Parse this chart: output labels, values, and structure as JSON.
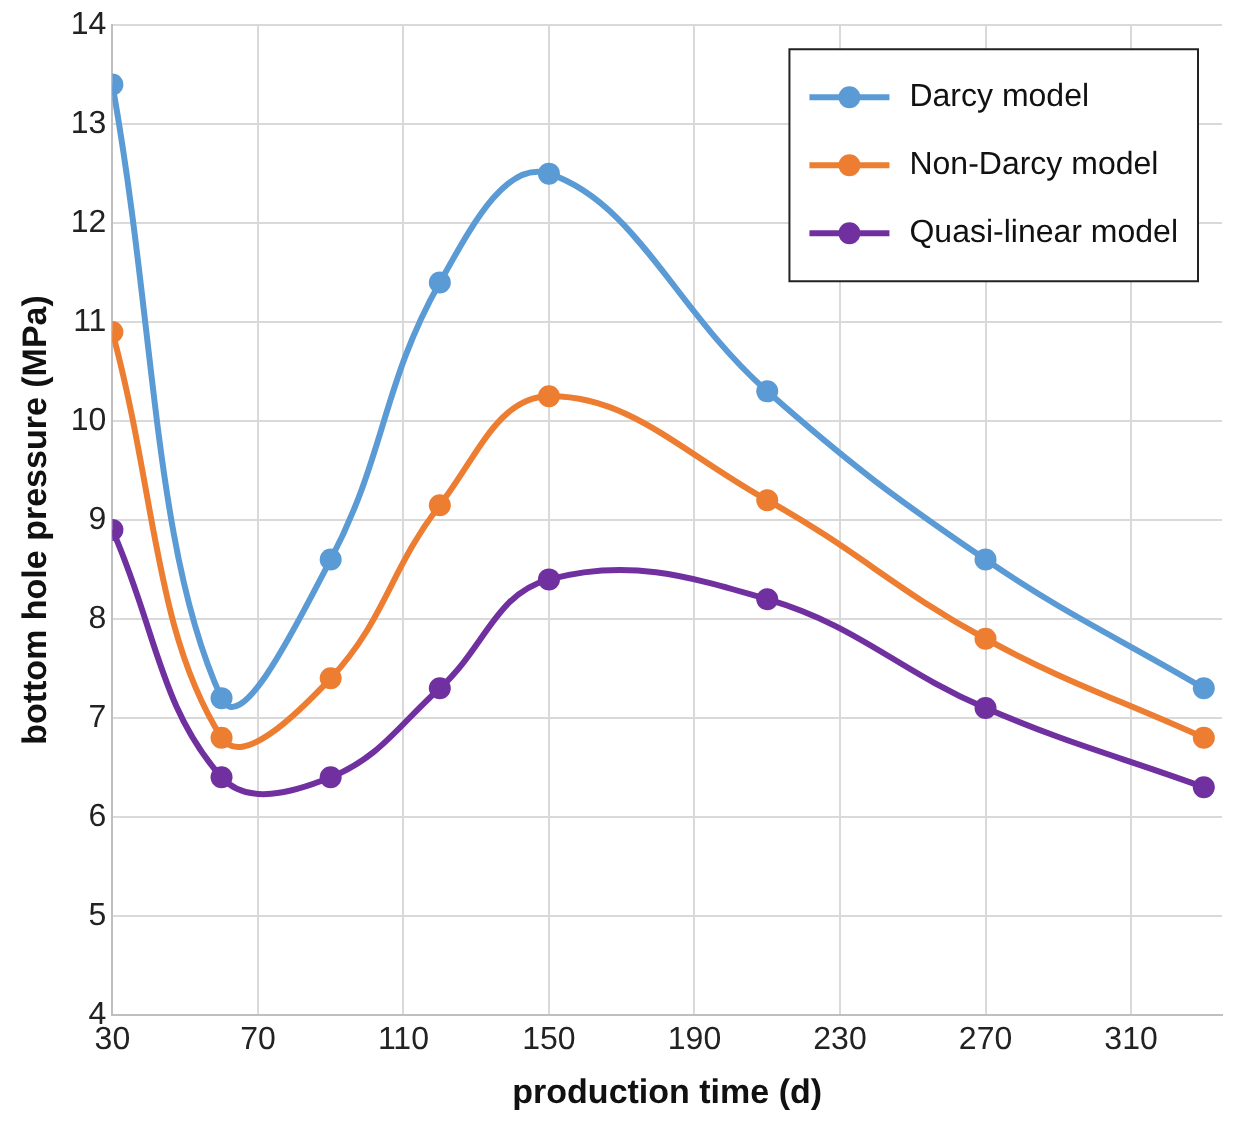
{
  "chart_data": {
    "type": "line",
    "xlabel": "production time (d)",
    "ylabel": "bottom hole pressure (MPa)",
    "x": [
      30,
      60,
      90,
      120,
      150,
      210,
      270,
      330
    ],
    "series": [
      {
        "name": "Darcy model",
        "color": "#5b9bd5",
        "values": [
          13.4,
          7.2,
          8.6,
          11.4,
          12.5,
          10.3,
          8.6,
          7.3
        ]
      },
      {
        "name": "Non-Darcy model",
        "color": "#ed7d31",
        "values": [
          10.9,
          6.8,
          7.4,
          9.15,
          10.25,
          9.2,
          7.8,
          6.8
        ]
      },
      {
        "name": "Quasi-linear model",
        "color": "#7030a0",
        "values": [
          8.9,
          6.4,
          6.4,
          7.3,
          8.4,
          8.2,
          7.1,
          6.3
        ]
      }
    ],
    "xlim": [
      30,
      335
    ],
    "xticks": [
      30,
      70,
      110,
      150,
      190,
      230,
      270,
      310
    ],
    "ylim": [
      4,
      14
    ],
    "yticks": [
      4,
      5,
      6,
      7,
      8,
      9,
      10,
      11,
      12,
      13,
      14
    ],
    "grid": true,
    "legend": "top right",
    "marker": "circle",
    "line_style": "solid"
  }
}
